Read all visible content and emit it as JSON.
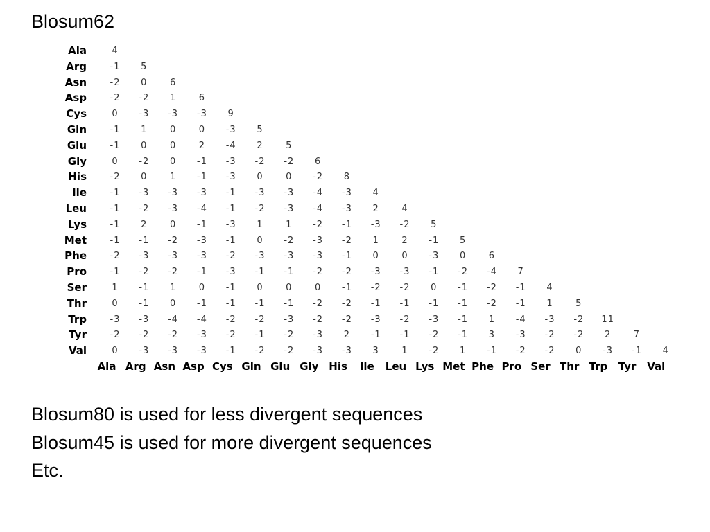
{
  "title": "Blosum62",
  "matrix": {
    "row_labels": [
      "Ala",
      "Arg",
      "Asn",
      "Asp",
      "Cys",
      "Gln",
      "Glu",
      "Gly",
      "His",
      "Ile",
      "Leu",
      "Lys",
      "Met",
      "Phe",
      "Pro",
      "Ser",
      "Thr",
      "Trp",
      "Tyr",
      "Val"
    ],
    "rows": [
      [
        4
      ],
      [
        -1,
        5
      ],
      [
        -2,
        0,
        6
      ],
      [
        -2,
        -2,
        1,
        6
      ],
      [
        0,
        -3,
        -3,
        -3,
        9
      ],
      [
        -1,
        1,
        0,
        0,
        -3,
        5
      ],
      [
        -1,
        0,
        0,
        2,
        -4,
        2,
        5
      ],
      [
        0,
        -2,
        0,
        -1,
        -3,
        -2,
        -2,
        6
      ],
      [
        -2,
        0,
        1,
        -1,
        -3,
        0,
        0,
        -2,
        8
      ],
      [
        -1,
        -3,
        -3,
        -3,
        -1,
        -3,
        -3,
        -4,
        -3,
        4
      ],
      [
        -1,
        -2,
        -3,
        -4,
        -1,
        -2,
        -3,
        -4,
        -3,
        2,
        4
      ],
      [
        -1,
        2,
        0,
        -1,
        -3,
        1,
        1,
        -2,
        -1,
        -3,
        -2,
        5
      ],
      [
        -1,
        -1,
        -2,
        -3,
        -1,
        0,
        -2,
        -3,
        -2,
        1,
        2,
        -1,
        5
      ],
      [
        -2,
        -3,
        -3,
        -3,
        -2,
        -3,
        -3,
        -3,
        -1,
        0,
        0,
        -3,
        0,
        6
      ],
      [
        -1,
        -2,
        -2,
        -1,
        -3,
        -1,
        -1,
        -2,
        -2,
        -3,
        -3,
        -1,
        -2,
        -4,
        7
      ],
      [
        1,
        -1,
        1,
        0,
        -1,
        0,
        0,
        0,
        -1,
        -2,
        -2,
        0,
        -1,
        -2,
        -1,
        4
      ],
      [
        0,
        -1,
        0,
        -1,
        -1,
        -1,
        -1,
        -2,
        -2,
        -1,
        -1,
        -1,
        -1,
        -2,
        -1,
        1,
        5
      ],
      [
        -3,
        -3,
        -4,
        -4,
        -2,
        -2,
        -3,
        -2,
        -2,
        -3,
        -2,
        -3,
        -1,
        1,
        -4,
        -3,
        -2,
        11
      ],
      [
        -2,
        -2,
        -2,
        -3,
        -2,
        -1,
        -2,
        -3,
        2,
        -1,
        -1,
        -2,
        -1,
        3,
        -3,
        -2,
        -2,
        2,
        7
      ],
      [
        0,
        -3,
        -3,
        -3,
        -1,
        -2,
        -2,
        -3,
        -3,
        3,
        1,
        -2,
        1,
        -1,
        -2,
        -2,
        0,
        -3,
        -1,
        4
      ]
    ],
    "col_labels": [
      "Ala",
      "Arg",
      "Asn",
      "Asp",
      "Cys",
      "Gln",
      "Glu",
      "Gly",
      "His",
      "Ile",
      "Leu",
      "Lys",
      "Met",
      "Phe",
      "Pro",
      "Ser",
      "Thr",
      "Trp",
      "Tyr",
      "Val"
    ]
  },
  "notes": [
    "Blosum80 is used for less divergent sequences",
    "Blosum45 is used for more divergent sequences",
    "Etc."
  ]
}
